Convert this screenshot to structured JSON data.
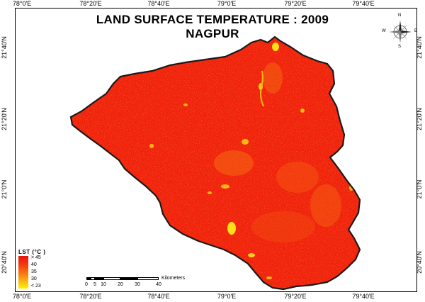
{
  "map": {
    "title_line1": "LAND SURFACE TEMPERATURE : 2009",
    "title_line2": "NAGPUR"
  },
  "axes": {
    "top": [
      "78°0'E",
      "78°20'E",
      "78°40'E",
      "79°0'E",
      "79°20'E",
      "79°40'E"
    ],
    "bottom": [
      "78°0'E",
      "78°20'E",
      "78°40'E",
      "79°0'E",
      "79°20'E",
      "79°40'E"
    ],
    "left": [
      "21°40'N",
      "21°20'N",
      "21°0'N",
      "20°40'N"
    ],
    "right": [
      "21°40'N",
      "21°20'N",
      "21°0'N",
      "20°40'N"
    ]
  },
  "legend": {
    "title": "LST (°C )",
    "labels": [
      "> 45",
      "40",
      "35",
      "30",
      "< 23"
    ],
    "colors": [
      "#e8140a",
      "#f5400e",
      "#fb7a10",
      "#f7b716",
      "#fff200"
    ]
  },
  "scale_bar": {
    "labels": [
      "0",
      "5",
      "10",
      "20",
      "30",
      "40"
    ],
    "unit": "Kilometers"
  },
  "compass": {
    "n": "N",
    "s": "S",
    "e": "E",
    "w": "W"
  },
  "colors": {
    "hot": "#f0220c",
    "warm": "#f6600f",
    "cool": "#f8c21a",
    "boundary": "#1a1a1a"
  }
}
